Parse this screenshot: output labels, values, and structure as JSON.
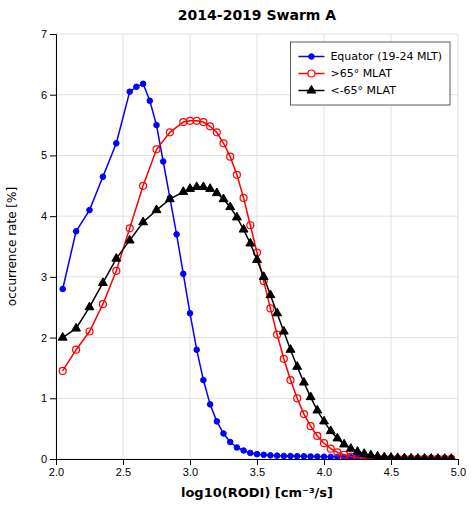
{
  "chart_data": {
    "type": "line",
    "title": "2014-2019 Swarm A",
    "xlabel": "log10(RODI) [cm⁻³/s]",
    "ylabel": "occurrence rate [%]",
    "xlim": [
      2.0,
      5.0
    ],
    "ylim": [
      0,
      7
    ],
    "xticks": [
      {
        "value": 2.0,
        "label": "2.0"
      },
      2.5,
      {
        "value": 3.0,
        "label": "3.0"
      },
      3.5,
      {
        "value": 4.0,
        "label": "4.0"
      },
      4.5,
      {
        "value": 5.0,
        "label": "5.0"
      }
    ],
    "yticks": [
      0,
      1,
      2,
      3,
      4,
      5,
      6,
      7
    ],
    "grid": true,
    "legend": "top-right",
    "series": [
      {
        "name": "Equator (19-24 MLT)",
        "color": "#0000FF",
        "marker": "circle",
        "x": [
          2.05,
          2.15,
          2.25,
          2.35,
          2.45,
          2.55,
          2.6,
          2.65,
          2.7,
          2.75,
          2.8,
          2.85,
          2.9,
          2.95,
          3.0,
          3.05,
          3.1,
          3.15,
          3.2,
          3.25,
          3.3,
          3.35,
          3.4,
          3.45,
          3.5,
          3.55,
          3.6,
          3.65,
          3.7,
          3.75,
          3.8,
          3.85,
          3.9,
          3.95,
          4.0,
          4.05,
          4.1,
          4.15,
          4.2,
          4.25,
          4.3,
          4.35,
          4.4,
          4.45,
          4.5,
          4.55,
          4.6,
          4.65,
          4.7,
          4.75,
          4.8,
          4.85,
          4.9,
          4.95
        ],
        "values": [
          2.8,
          3.75,
          4.1,
          4.65,
          5.2,
          6.05,
          6.13,
          6.18,
          5.9,
          5.5,
          4.9,
          4.3,
          3.7,
          3.05,
          2.4,
          1.8,
          1.3,
          0.9,
          0.62,
          0.42,
          0.28,
          0.19,
          0.14,
          0.1,
          0.08,
          0.07,
          0.06,
          0.055,
          0.05,
          0.048,
          0.046,
          0.044,
          0.042,
          0.04,
          0.038,
          0.036,
          0.034,
          0.032,
          0.03,
          0.028,
          0.026,
          0.024,
          0.022,
          0.02,
          0.018,
          0.017,
          0.016,
          0.015,
          0.014,
          0.013,
          0.012,
          0.011,
          0.01,
          0.009
        ]
      },
      {
        "name": ">65° MLAT",
        "color": "#FF0000",
        "marker": "open-circle",
        "x": [
          2.05,
          2.15,
          2.25,
          2.35,
          2.45,
          2.55,
          2.65,
          2.75,
          2.85,
          2.95,
          3.0,
          3.05,
          3.1,
          3.15,
          3.2,
          3.25,
          3.3,
          3.35,
          3.4,
          3.45,
          3.5,
          3.55,
          3.6,
          3.65,
          3.7,
          3.75,
          3.8,
          3.85,
          3.9,
          3.95,
          4.0,
          4.05,
          4.1,
          4.15,
          4.2,
          4.25,
          4.3,
          4.35,
          4.4,
          4.45,
          4.5,
          4.55,
          4.6,
          4.65,
          4.7,
          4.75,
          4.8,
          4.85,
          4.9,
          4.95
        ],
        "values": [
          1.45,
          1.8,
          2.1,
          2.55,
          3.1,
          3.8,
          4.5,
          5.1,
          5.38,
          5.55,
          5.57,
          5.57,
          5.55,
          5.48,
          5.38,
          5.2,
          4.98,
          4.68,
          4.3,
          3.85,
          3.4,
          2.93,
          2.48,
          2.05,
          1.65,
          1.3,
          1.0,
          0.74,
          0.54,
          0.38,
          0.26,
          0.17,
          0.11,
          0.07,
          0.04,
          0.025,
          0.015,
          0.01,
          0.007,
          0.005,
          0.004,
          0.003,
          0.003,
          0.002,
          0.002,
          0.002,
          0.001,
          0.001,
          0.001,
          0.001
        ]
      },
      {
        "name": "<-65° MLAT",
        "color": "#000000",
        "marker": "triangle",
        "x": [
          2.05,
          2.15,
          2.25,
          2.35,
          2.45,
          2.55,
          2.65,
          2.75,
          2.85,
          2.95,
          3.0,
          3.05,
          3.1,
          3.15,
          3.2,
          3.25,
          3.3,
          3.35,
          3.4,
          3.45,
          3.5,
          3.55,
          3.6,
          3.65,
          3.7,
          3.75,
          3.8,
          3.85,
          3.9,
          3.95,
          4.0,
          4.05,
          4.1,
          4.15,
          4.2,
          4.25,
          4.3,
          4.35,
          4.4,
          4.45,
          4.5,
          4.55,
          4.6,
          4.65,
          4.7,
          4.75,
          4.8,
          4.85,
          4.9,
          4.95
        ],
        "values": [
          2.0,
          2.15,
          2.5,
          2.9,
          3.3,
          3.6,
          3.9,
          4.1,
          4.28,
          4.4,
          4.45,
          4.48,
          4.48,
          4.45,
          4.38,
          4.28,
          4.15,
          3.98,
          3.78,
          3.55,
          3.28,
          3.0,
          2.7,
          2.4,
          2.1,
          1.8,
          1.52,
          1.26,
          1.02,
          0.8,
          0.62,
          0.46,
          0.34,
          0.24,
          0.17,
          0.12,
          0.085,
          0.06,
          0.042,
          0.03,
          0.022,
          0.016,
          0.012,
          0.009,
          0.007,
          0.006,
          0.005,
          0.004,
          0.003,
          0.003
        ]
      }
    ]
  }
}
